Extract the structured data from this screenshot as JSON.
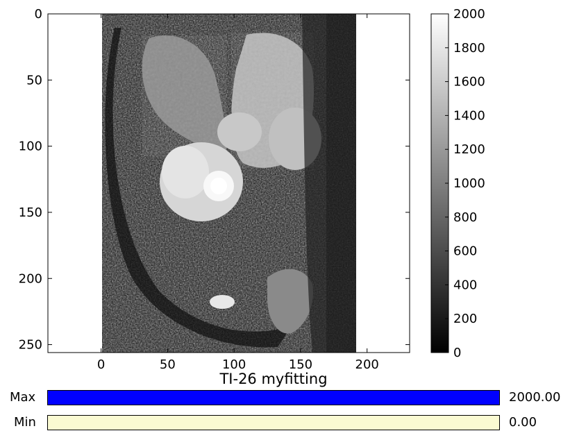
{
  "figure": {
    "title": "TI-26 myfitting",
    "image": {
      "description_hidden": false,
      "x_extent": [
        0,
        192
      ],
      "y_extent": [
        0,
        256
      ],
      "background": "#ffffff",
      "colormap": "gray"
    },
    "x_axis": {
      "range": [
        -40,
        232
      ],
      "ticks": [
        0,
        50,
        100,
        150,
        200
      ],
      "tick_labels": [
        "0",
        "50",
        "100",
        "150",
        "200"
      ]
    },
    "y_axis": {
      "range": [
        256,
        0
      ],
      "ticks": [
        0,
        50,
        100,
        150,
        200,
        250
      ],
      "tick_labels": [
        "0",
        "50",
        "100",
        "150",
        "200",
        "250"
      ]
    },
    "colorbar": {
      "range": [
        0,
        2000
      ],
      "ticks": [
        0,
        200,
        400,
        600,
        800,
        1000,
        1200,
        1400,
        1600,
        1800,
        2000
      ],
      "tick_labels": [
        "0",
        "200",
        "400",
        "600",
        "800",
        "1000",
        "1200",
        "1400",
        "1600",
        "1800",
        "2000"
      ]
    }
  },
  "sliders": {
    "max": {
      "label": "Max",
      "value_text": "2000.00",
      "fraction": 1.0,
      "color": "#0000ff"
    },
    "min": {
      "label": "Min",
      "value_text": "0.00",
      "fraction": 1.0,
      "color": "#fafad2"
    }
  }
}
